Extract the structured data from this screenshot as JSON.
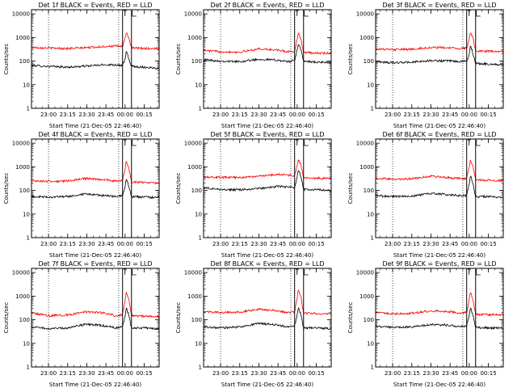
{
  "figure": {
    "background": "#ffffff"
  },
  "chart_data": [
    {
      "type": "line",
      "title": "Det 1f BLACK = Events, RED = LLD",
      "xlabel": "Start Time (21-Dec-05 22:46:40)",
      "ylabel": "Counts/sec",
      "yscale": "log",
      "ylim": [
        1,
        15000
      ],
      "xlim": [
        "22:46:40",
        "00:26:40"
      ],
      "x_ticks": [
        "23:00",
        "23:15",
        "23:30",
        "23:45",
        "00:00",
        "00:15"
      ],
      "y_ticks": [
        "1",
        "10",
        "100",
        "1000",
        "10000"
      ],
      "dotted_lines": [
        "23:00",
        "23:55"
      ],
      "solid_lines": [
        "23:58",
        "00:05"
      ],
      "x": [
        "22:47",
        "23:00",
        "23:15",
        "23:30",
        "23:45",
        "23:52",
        "23:58",
        "00:00",
        "00:01",
        "00:03",
        "00:05",
        "00:15",
        "00:26"
      ],
      "series": [
        {
          "color": "#000000",
          "values": [
            65,
            60,
            55,
            62,
            70,
            70,
            65,
            120,
            260,
            120,
            60,
            55,
            50
          ]
        },
        {
          "color": "#ff0000",
          "values": [
            380,
            360,
            340,
            370,
            420,
            430,
            420,
            900,
            1800,
            900,
            360,
            340,
            340
          ]
        }
      ]
    },
    {
      "type": "line",
      "title": "Det 2f BLACK = Events, RED = LLD",
      "xlabel": "Start Time (21-Dec-05 22:46:40)",
      "ylabel": "Counts/sec",
      "yscale": "log",
      "ylim": [
        1,
        15000
      ],
      "xlim": [
        "22:46:40",
        "00:26:40"
      ],
      "x_ticks": [
        "23:00",
        "23:15",
        "23:30",
        "23:45",
        "00:00",
        "00:15"
      ],
      "y_ticks": [
        "1",
        "10",
        "100",
        "1000",
        "10000"
      ],
      "dotted_lines": [
        "23:00",
        "23:55"
      ],
      "solid_lines": [
        "23:58",
        "00:05"
      ],
      "x": [
        "22:47",
        "23:00",
        "23:15",
        "23:30",
        "23:45",
        "23:52",
        "23:58",
        "00:00",
        "00:01",
        "00:03",
        "00:05",
        "00:15",
        "00:26"
      ],
      "series": [
        {
          "color": "#000000",
          "values": [
            115,
            100,
            95,
            120,
            110,
            95,
            105,
            300,
            500,
            300,
            100,
            90,
            85
          ]
        },
        {
          "color": "#ff0000",
          "values": [
            280,
            250,
            240,
            330,
            290,
            250,
            260,
            800,
            1800,
            800,
            230,
            220,
            210
          ]
        }
      ]
    },
    {
      "type": "line",
      "title": "Det 3f BLACK = Events, RED = LLD",
      "xlabel": "Start Time (21-Dec-05 22:46:40)",
      "ylabel": "Counts/sec",
      "yscale": "log",
      "ylim": [
        1,
        15000
      ],
      "xlim": [
        "22:46:40",
        "00:26:40"
      ],
      "x_ticks": [
        "23:00",
        "23:15",
        "23:30",
        "23:45",
        "00:00",
        "00:15"
      ],
      "y_ticks": [
        "1",
        "10",
        "100",
        "1000",
        "10000"
      ],
      "dotted_lines": [
        "23:00",
        "23:55"
      ],
      "solid_lines": [
        "23:58",
        "00:05"
      ],
      "x": [
        "22:47",
        "23:00",
        "23:15",
        "23:30",
        "23:45",
        "23:52",
        "23:58",
        "00:00",
        "00:01",
        "00:03",
        "00:05",
        "00:15",
        "00:26"
      ],
      "series": [
        {
          "color": "#000000",
          "values": [
            95,
            85,
            90,
            105,
            100,
            95,
            100,
            200,
            450,
            200,
            80,
            75,
            70
          ]
        },
        {
          "color": "#ff0000",
          "values": [
            330,
            300,
            320,
            380,
            360,
            340,
            350,
            900,
            1800,
            900,
            270,
            260,
            250
          ]
        }
      ]
    },
    {
      "type": "line",
      "title": "Det 4f BLACK = Events, RED = LLD",
      "xlabel": "Start Time (21-Dec-05 22:46:40)",
      "ylabel": "Counts/sec",
      "yscale": "log",
      "ylim": [
        1,
        15000
      ],
      "xlim": [
        "22:46:40",
        "00:26:40"
      ],
      "x_ticks": [
        "23:00",
        "23:15",
        "23:30",
        "23:45",
        "00:00",
        "00:15"
      ],
      "y_ticks": [
        "1",
        "10",
        "100",
        "1000",
        "10000"
      ],
      "dotted_lines": [
        "23:00",
        "23:55"
      ],
      "solid_lines": [
        "23:58",
        "00:05"
      ],
      "x": [
        "22:47",
        "23:00",
        "23:15",
        "23:30",
        "23:45",
        "23:52",
        "23:58",
        "00:00",
        "00:01",
        "00:03",
        "00:05",
        "00:15",
        "00:26"
      ],
      "series": [
        {
          "color": "#000000",
          "values": [
            55,
            52,
            55,
            70,
            60,
            55,
            60,
            150,
            300,
            150,
            55,
            52,
            50
          ]
        },
        {
          "color": "#ff0000",
          "values": [
            260,
            240,
            250,
            320,
            280,
            250,
            270,
            800,
            1800,
            800,
            230,
            220,
            210
          ]
        }
      ]
    },
    {
      "type": "line",
      "title": "Det 5f BLACK = Events, RED = LLD",
      "xlabel": "Start Time (21-Dec-05 22:46:40)",
      "ylabel": "Counts/sec",
      "yscale": "log",
      "ylim": [
        1,
        15000
      ],
      "xlim": [
        "22:46:40",
        "00:26:40"
      ],
      "x_ticks": [
        "23:00",
        "23:15",
        "23:30",
        "23:45",
        "00:00",
        "00:15"
      ],
      "y_ticks": [
        "1",
        "10",
        "100",
        "1000",
        "10000"
      ],
      "dotted_lines": [
        "23:00",
        "23:55"
      ],
      "solid_lines": [
        "23:58",
        "00:05"
      ],
      "x": [
        "22:47",
        "23:00",
        "23:15",
        "23:30",
        "23:45",
        "23:52",
        "23:58",
        "00:00",
        "00:01",
        "00:03",
        "00:05",
        "00:15",
        "00:26"
      ],
      "series": [
        {
          "color": "#000000",
          "values": [
            130,
            110,
            105,
            120,
            150,
            140,
            130,
            400,
            700,
            400,
            110,
            110,
            100
          ]
        },
        {
          "color": "#ff0000",
          "values": [
            380,
            360,
            350,
            400,
            480,
            450,
            420,
            1200,
            2000,
            1200,
            330,
            330,
            320
          ]
        }
      ]
    },
    {
      "type": "line",
      "title": "Det 6f BLACK = Events, RED = LLD",
      "xlabel": "Start Time (21-Dec-05 22:46:40)",
      "ylabel": "Counts/sec",
      "yscale": "log",
      "ylim": [
        1,
        15000
      ],
      "xlim": [
        "22:46:40",
        "00:26:40"
      ],
      "x_ticks": [
        "23:00",
        "23:15",
        "23:30",
        "23:45",
        "00:00",
        "00:15"
      ],
      "y_ticks": [
        "1",
        "10",
        "100",
        "1000",
        "10000"
      ],
      "dotted_lines": [
        "23:00",
        "23:55"
      ],
      "solid_lines": [
        "23:58",
        "00:05"
      ],
      "x": [
        "22:47",
        "23:00",
        "23:15",
        "23:30",
        "23:45",
        "23:52",
        "23:58",
        "00:00",
        "00:01",
        "00:03",
        "00:05",
        "00:15",
        "00:26"
      ],
      "series": [
        {
          "color": "#000000",
          "values": [
            60,
            55,
            58,
            75,
            65,
            60,
            62,
            200,
            420,
            200,
            55,
            55,
            50
          ]
        },
        {
          "color": "#ff0000",
          "values": [
            320,
            300,
            310,
            400,
            340,
            320,
            320,
            1000,
            2000,
            1000,
            280,
            270,
            260
          ]
        }
      ]
    },
    {
      "type": "line",
      "title": "Det 7f BLACK = Events, RED = LLD",
      "xlabel": "Start Time (21-Dec-05 22:46:40)",
      "ylabel": "Counts/sec",
      "yscale": "log",
      "ylim": [
        1,
        15000
      ],
      "xlim": [
        "22:46:40",
        "00:26:40"
      ],
      "x_ticks": [
        "23:00",
        "23:15",
        "23:30",
        "23:45",
        "00:00",
        "00:15"
      ],
      "y_ticks": [
        "1",
        "10",
        "100",
        "1000",
        "10000"
      ],
      "dotted_lines": [
        "23:00",
        "23:55"
      ],
      "solid_lines": [
        "23:58",
        "00:05"
      ],
      "x": [
        "22:47",
        "23:00",
        "23:15",
        "23:30",
        "23:45",
        "23:52",
        "23:58",
        "00:00",
        "00:01",
        "00:03",
        "00:05",
        "00:15",
        "00:26"
      ],
      "series": [
        {
          "color": "#000000",
          "values": [
            50,
            42,
            45,
            65,
            55,
            45,
            50,
            150,
            330,
            150,
            45,
            45,
            42
          ]
        },
        {
          "color": "#ff0000",
          "values": [
            190,
            150,
            160,
            220,
            190,
            150,
            160,
            700,
            1500,
            700,
            150,
            140,
            135
          ]
        }
      ]
    },
    {
      "type": "line",
      "title": "Det 8f BLACK = Events, RED = LLD",
      "xlabel": "Start Time (21-Dec-05 22:46:40)",
      "ylabel": "Counts/sec",
      "yscale": "log",
      "ylim": [
        1,
        15000
      ],
      "xlim": [
        "22:46:40",
        "00:26:40"
      ],
      "x_ticks": [
        "23:00",
        "23:15",
        "23:30",
        "23:45",
        "00:00",
        "00:15"
      ],
      "y_ticks": [
        "1",
        "10",
        "100",
        "1000",
        "10000"
      ],
      "dotted_lines": [
        "23:00",
        "23:55"
      ],
      "solid_lines": [
        "23:58",
        "00:05"
      ],
      "x": [
        "22:47",
        "23:00",
        "23:15",
        "23:30",
        "23:45",
        "23:52",
        "23:58",
        "00:00",
        "00:01",
        "00:03",
        "00:05",
        "00:15",
        "00:26"
      ],
      "series": [
        {
          "color": "#000000",
          "values": [
            50,
            45,
            50,
            70,
            60,
            50,
            55,
            160,
            330,
            160,
            45,
            45,
            42
          ]
        },
        {
          "color": "#ff0000",
          "values": [
            220,
            200,
            210,
            280,
            240,
            200,
            210,
            900,
            1900,
            900,
            190,
            185,
            180
          ]
        }
      ]
    },
    {
      "type": "line",
      "title": "Det 9f BLACK = Events, RED = LLD",
      "xlabel": "Start Time (21-Dec-05 22:46:40)",
      "ylabel": "Counts/sec",
      "yscale": "log",
      "ylim": [
        1,
        15000
      ],
      "xlim": [
        "22:46:40",
        "00:26:40"
      ],
      "x_ticks": [
        "23:00",
        "23:15",
        "23:30",
        "23:45",
        "00:00",
        "00:15"
      ],
      "y_ticks": [
        "1",
        "10",
        "100",
        "1000",
        "10000"
      ],
      "dotted_lines": [
        "23:00",
        "23:55"
      ],
      "solid_lines": [
        "23:58",
        "00:05"
      ],
      "x": [
        "22:47",
        "23:00",
        "23:15",
        "23:30",
        "23:45",
        "23:52",
        "23:58",
        "00:00",
        "00:01",
        "00:03",
        "00:05",
        "00:15",
        "00:26"
      ],
      "series": [
        {
          "color": "#000000",
          "values": [
            52,
            48,
            50,
            62,
            58,
            50,
            55,
            150,
            330,
            150,
            48,
            45,
            45
          ]
        },
        {
          "color": "#ff0000",
          "values": [
            200,
            180,
            190,
            240,
            220,
            190,
            200,
            700,
            1500,
            700,
            170,
            165,
            160
          ]
        }
      ]
    }
  ]
}
